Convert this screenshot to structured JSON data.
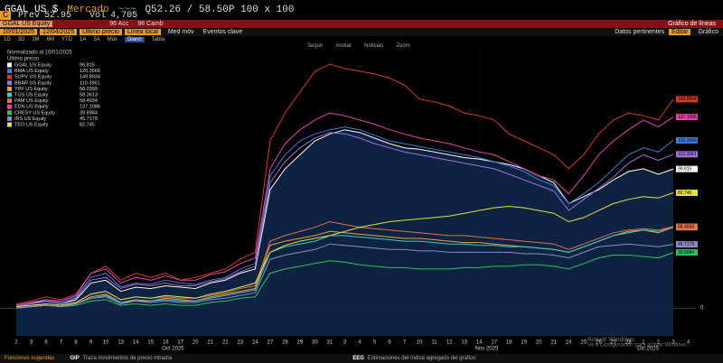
{
  "header": {
    "ticker": "GGAL US $",
    "market": "Mercado",
    "quote": "Q52.26 / 58.50P 100 x 100",
    "prev_label": "Prev",
    "prev": "52.95",
    "vol_label": "Vol",
    "vol": "4,705"
  },
  "menu": {
    "security": "GGAL US Equity",
    "actions": "96 Acc",
    "change": "98 Camb",
    "view": "Gráfico de líneas"
  },
  "settings": {
    "start": "10/01/2025",
    "end": "12/04/2025",
    "field": "Último precio",
    "style": "Línea local",
    "ma": "Med móv",
    "events": "Eventos clave",
    "right": [
      "Datos pertinentes",
      "Editar",
      "Gráfico"
    ]
  },
  "periods": [
    "1D",
    "3D",
    "1M",
    "6M",
    "YTD",
    "1A",
    "5A",
    "Máx",
    "Diario",
    "Tabla"
  ],
  "tools": [
    "Seguir",
    "Anotar",
    "Noticias",
    "Zoom"
  ],
  "footer": {
    "title": "Funciones sugeridas",
    "items": [
      {
        "code": "GIP",
        "text": "Traza movimientos de precio intradía"
      },
      {
        "code": "EEG",
        "text": "Estimaciones del índice agregado del gráfico"
      }
    ]
  },
  "watermark": [
    "Activar Windows",
    "Ve a Configuración para activar Windows."
  ],
  "chart_data": {
    "type": "line",
    "legend_title": "Normalizado al 10/01/2025",
    "legend_subtitle": "Último precio",
    "categories": [
      "2",
      "3",
      "6",
      "7",
      "8",
      "9",
      "10",
      "13",
      "14",
      "15",
      "16",
      "17",
      "20",
      "21",
      "22",
      "23",
      "24",
      "27",
      "28",
      "29",
      "30",
      "31",
      "3",
      "4",
      "5",
      "6",
      "7",
      "10",
      "11",
      "12",
      "13",
      "14",
      "17",
      "18",
      "19",
      "20",
      "21",
      "24",
      "25",
      "26",
      "27",
      "28",
      "1",
      "2",
      "3",
      "4"
    ],
    "months": [
      "Oct 2025",
      "Nov 2025",
      "Dic 2025"
    ],
    "ylim": [
      -20,
      190
    ],
    "yticks": [
      0
    ],
    "series": [
      {
        "name": "GGAL US Equity",
        "color": "#ffffff",
        "area": true,
        "values": [
          2,
          4,
          5,
          3,
          6,
          18,
          20,
          12,
          15,
          14,
          16,
          15,
          14,
          18,
          20,
          25,
          28,
          85,
          100,
          110,
          120,
          125,
          128,
          126,
          122,
          118,
          115,
          114,
          112,
          110,
          108,
          107,
          105,
          103,
          100,
          95,
          90,
          75,
          80,
          85,
          92,
          98,
          100,
          96,
          99.815,
          null
        ]
      },
      {
        "name": "BMA US Equity",
        "color": "#3b7fe0",
        "values": [
          2,
          4,
          6,
          4,
          8,
          22,
          25,
          15,
          18,
          17,
          20,
          18,
          17,
          20,
          22,
          28,
          32,
          95,
          110,
          120,
          125,
          128,
          130,
          128,
          124,
          120,
          118,
          116,
          114,
          112,
          110,
          108,
          105,
          102,
          98,
          92,
          88,
          75,
          82,
          90,
          100,
          110,
          115,
          112,
          120.3566,
          null
        ]
      },
      {
        "name": "SUPV US Equity",
        "color": "#d83a2a",
        "values": [
          3,
          5,
          8,
          6,
          10,
          25,
          30,
          20,
          25,
          22,
          25,
          20,
          22,
          25,
          28,
          35,
          40,
          120,
          140,
          155,
          170,
          175,
          172,
          170,
          168,
          165,
          160,
          150,
          148,
          145,
          140,
          138,
          135,
          125,
          120,
          115,
          110,
          100,
          110,
          125,
          135,
          140,
          138,
          135,
          149.8934,
          null
        ]
      },
      {
        "name": "BBAR US Equity",
        "color": "#a070e0",
        "values": [
          1,
          3,
          5,
          3,
          7,
          20,
          22,
          14,
          17,
          16,
          18,
          16,
          16,
          19,
          21,
          26,
          30,
          90,
          105,
          115,
          122,
          126,
          125,
          122,
          118,
          115,
          112,
          110,
          108,
          106,
          104,
          102,
          100,
          96,
          92,
          88,
          84,
          70,
          78,
          86,
          94,
          104,
          110,
          106,
          110.3961,
          null
        ]
      },
      {
        "name": "YPF US Equity",
        "color": "#f0a030",
        "values": [
          0,
          1,
          2,
          1,
          3,
          8,
          10,
          4,
          6,
          5,
          7,
          6,
          5,
          8,
          10,
          12,
          14,
          45,
          48,
          50,
          52,
          55,
          54,
          53,
          52,
          51,
          50,
          50,
          49,
          48,
          47,
          47,
          46,
          45,
          44,
          43,
          42,
          40,
          44,
          48,
          52,
          55,
          56,
          54,
          58.0399,
          null
        ]
      },
      {
        "name": "TGS US Equity",
        "color": "#40c8d0",
        "values": [
          0,
          1,
          2,
          1,
          3,
          7,
          9,
          4,
          5,
          5,
          6,
          5,
          5,
          7,
          9,
          11,
          13,
          40,
          44,
          46,
          48,
          52,
          52,
          51,
          50,
          49,
          48,
          48,
          47,
          46,
          46,
          45,
          45,
          44,
          44,
          43,
          42,
          40,
          44,
          48,
          52,
          54,
          56,
          55,
          58.3613,
          null
        ]
      },
      {
        "name": "PAM US Equity",
        "color": "#e07050",
        "values": [
          0,
          1,
          3,
          2,
          4,
          10,
          12,
          6,
          8,
          7,
          8,
          7,
          7,
          9,
          11,
          14,
          16,
          48,
          52,
          55,
          58,
          62,
          60,
          58,
          57,
          56,
          55,
          54,
          53,
          52,
          52,
          51,
          50,
          49,
          48,
          47,
          46,
          42,
          46,
          50,
          54,
          56,
          57,
          56,
          58.4034,
          null
        ]
      },
      {
        "name": "EDN US Equity",
        "color": "#e048a8",
        "values": [
          2,
          4,
          6,
          5,
          9,
          25,
          28,
          18,
          22,
          20,
          23,
          20,
          20,
          24,
          26,
          32,
          36,
          100,
          118,
          128,
          135,
          140,
          138,
          135,
          132,
          128,
          125,
          122,
          120,
          118,
          115,
          112,
          110,
          105,
          100,
          95,
          92,
          82,
          95,
          110,
          120,
          128,
          135,
          130,
          137.1086,
          null
        ]
      },
      {
        "name": "CRESY US Equity",
        "color": "#30c060",
        "values": [
          0,
          1,
          2,
          1,
          2,
          5,
          6,
          2,
          3,
          2,
          3,
          2,
          2,
          4,
          5,
          7,
          8,
          25,
          28,
          30,
          32,
          34,
          33,
          31,
          30,
          29,
          29,
          28,
          28,
          28,
          29,
          29,
          30,
          30,
          31,
          31,
          30,
          28,
          32,
          36,
          38,
          38,
          37,
          36,
          39.8984,
          null
        ]
      },
      {
        "name": "IRS US Equity",
        "color": "#8c8cc8",
        "values": [
          0,
          1,
          2,
          1,
          3,
          7,
          8,
          3,
          5,
          4,
          5,
          4,
          4,
          6,
          7,
          9,
          11,
          35,
          38,
          40,
          42,
          46,
          45,
          44,
          43,
          42,
          42,
          41,
          41,
          40,
          40,
          40,
          40,
          40,
          39,
          39,
          38,
          36,
          40,
          44,
          45,
          46,
          45,
          44,
          45.7179,
          null
        ]
      },
      {
        "name": "TEO US Equity",
        "color": "#e8e040",
        "values": [
          1,
          2,
          3,
          2,
          4,
          10,
          12,
          6,
          8,
          7,
          9,
          8,
          7,
          10,
          12,
          15,
          18,
          40,
          45,
          48,
          50,
          52,
          55,
          58,
          60,
          62,
          63,
          64,
          65,
          66,
          68,
          70,
          72,
          73,
          72,
          70,
          68,
          62,
          65,
          70,
          75,
          78,
          80,
          79,
          82.745,
          null
        ]
      }
    ]
  }
}
